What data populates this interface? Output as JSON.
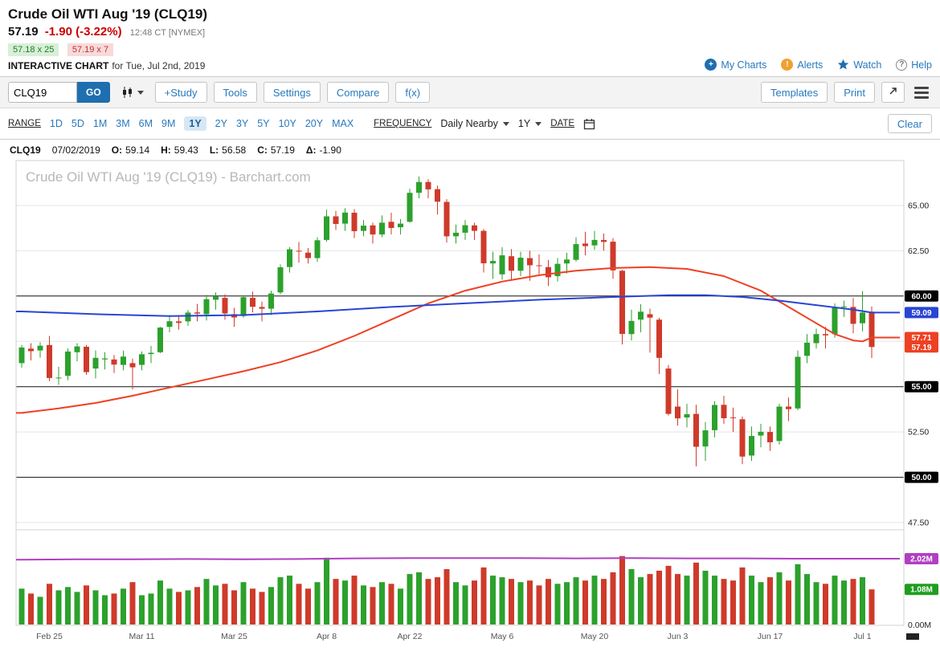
{
  "header": {
    "title": "Crude Oil WTI Aug '19 (CLQ19)",
    "last_price": "57.19",
    "change": "-1.90 (-3.22%)",
    "quote_time": "12:48 CT [NYMEX]",
    "bid": "57.18 x 25",
    "ask": "57.19 x 7",
    "interactive_label": "INTERACTIVE CHART",
    "interactive_suffix": "for Tue, Jul 2nd, 2019",
    "links": {
      "my_charts": "My Charts",
      "alerts": "Alerts",
      "watch": "Watch",
      "help": "Help"
    },
    "icon_glyphs": {
      "my_charts": "+",
      "alerts": "!",
      "help": "?"
    }
  },
  "toolbar": {
    "symbol_value": "CLQ19",
    "go_label": "GO",
    "buttons": [
      "+Study",
      "Tools",
      "Settings",
      "Compare",
      "f(x)"
    ],
    "right_buttons": [
      "Templates",
      "Print"
    ]
  },
  "range_bar": {
    "range_label": "RANGE",
    "ranges": [
      "1D",
      "5D",
      "1M",
      "3M",
      "6M",
      "9M",
      "1Y",
      "2Y",
      "3Y",
      "5Y",
      "10Y",
      "20Y",
      "MAX"
    ],
    "active_range": "1Y",
    "frequency_label": "FREQUENCY",
    "frequency_value": "Daily Nearby",
    "period_value": "1Y",
    "date_label": "DATE",
    "clear_label": "Clear"
  },
  "ohlc_bar": {
    "symbol": "CLQ19",
    "date": "07/02/2019",
    "open_label": "O:",
    "open": "59.14",
    "high_label": "H:",
    "high": "59.43",
    "low_label": "L:",
    "low": "56.58",
    "close_label": "C:",
    "close": "57.19",
    "change_label": "Δ:",
    "change": "-1.90"
  },
  "chart_data": {
    "type": "candlestick",
    "watermark": "Crude Oil WTI Aug '19 (CLQ19) - Barchart.com",
    "colors": {
      "up": "#2ca12c",
      "down": "#cf3a2a",
      "ma_blue": "#2945d4",
      "ma_red": "#ee4023",
      "oi_purple": "#b03fc1",
      "badge_black": "#000000",
      "vol_badge_green": "#1f9d1f"
    },
    "price_axis": {
      "range": [
        47.2,
        67.6
      ],
      "gridlines": [
        65,
        62.5,
        57.5,
        52.5,
        47.5
      ],
      "black_lines": [
        60,
        55,
        50
      ],
      "labels": [
        {
          "v": 65,
          "t": "65.00"
        },
        {
          "v": 62.5,
          "t": "62.50"
        },
        {
          "v": 52.5,
          "t": "52.50"
        },
        {
          "v": 47.5,
          "t": "47.50"
        }
      ],
      "badges": [
        {
          "v": 60,
          "t": "60.00",
          "c": "#000000"
        },
        {
          "v": 59.09,
          "t": "59.09",
          "c": "#2945d4"
        },
        {
          "v": 57.71,
          "t": "57.71",
          "c": "#ee4023"
        },
        {
          "v": 57.19,
          "t": "57.19",
          "c": "#ee4023"
        },
        {
          "v": 55,
          "t": "55.00",
          "c": "#000000"
        },
        {
          "v": 50,
          "t": "50.00",
          "c": "#000000"
        }
      ]
    },
    "volume_axis": {
      "range": [
        0,
        2.4
      ],
      "labels": [
        {
          "v": 0,
          "t": "0.00M"
        }
      ],
      "badges": [
        {
          "v": 2.02,
          "t": "2.02M",
          "c": "#b03fc1"
        },
        {
          "v": 1.08,
          "t": "1.08M",
          "c": "#1f9d1f"
        }
      ]
    },
    "x_ticks": [
      {
        "i": 3,
        "label": "Feb 25"
      },
      {
        "i": 13,
        "label": "Mar 11"
      },
      {
        "i": 23,
        "label": "Mar 25"
      },
      {
        "i": 33,
        "label": "Apr 8"
      },
      {
        "i": 42,
        "label": "Apr 22"
      },
      {
        "i": 52,
        "label": "May 6"
      },
      {
        "i": 62,
        "label": "May 20"
      },
      {
        "i": 71,
        "label": "Jun 3"
      },
      {
        "i": 81,
        "label": "Jun 17"
      },
      {
        "i": 91,
        "label": "Jul 1"
      }
    ],
    "bars": [
      [
        56.3,
        57.3,
        56.05,
        57.16,
        1.1
      ],
      [
        57.1,
        57.4,
        56.45,
        56.96,
        0.95
      ],
      [
        57.0,
        57.45,
        56.6,
        57.26,
        0.85
      ],
      [
        57.3,
        57.8,
        55.3,
        55.48,
        1.25
      ],
      [
        55.5,
        56.1,
        55.1,
        55.5,
        1.05
      ],
      [
        55.6,
        57.1,
        55.35,
        56.94,
        1.15
      ],
      [
        56.9,
        57.4,
        56.4,
        57.22,
        1.0
      ],
      [
        57.2,
        57.3,
        55.65,
        55.8,
        1.2
      ],
      [
        56.0,
        57.0,
        55.45,
        56.59,
        1.05
      ],
      [
        56.5,
        56.9,
        55.95,
        56.56,
        0.9
      ],
      [
        56.5,
        56.75,
        55.75,
        56.22,
        0.95
      ],
      [
        56.2,
        57.0,
        55.9,
        56.66,
        1.1
      ],
      [
        56.3,
        56.55,
        54.85,
        56.07,
        1.3
      ],
      [
        56.2,
        56.95,
        55.9,
        56.79,
        0.9
      ],
      [
        56.8,
        57.25,
        56.3,
        56.87,
        0.95
      ],
      [
        56.9,
        58.3,
        56.85,
        58.26,
        1.35
      ],
      [
        58.3,
        58.95,
        58.0,
        58.61,
        1.1
      ],
      [
        58.6,
        58.95,
        58.15,
        58.52,
        1.0
      ],
      [
        58.6,
        59.23,
        58.35,
        59.09,
        1.05
      ],
      [
        59.1,
        59.57,
        58.6,
        59.03,
        1.15
      ],
      [
        59.0,
        60.07,
        58.65,
        59.83,
        1.4
      ],
      [
        59.8,
        60.2,
        59.25,
        59.98,
        1.2
      ],
      [
        59.9,
        60.1,
        58.7,
        59.04,
        1.25
      ],
      [
        59.0,
        59.35,
        58.3,
        58.82,
        1.05
      ],
      [
        58.9,
        60.05,
        58.8,
        59.94,
        1.3
      ],
      [
        59.9,
        60.25,
        59.1,
        59.41,
        1.1
      ],
      [
        59.4,
        59.7,
        58.6,
        59.3,
        1.0
      ],
      [
        59.3,
        60.3,
        58.95,
        60.14,
        1.15
      ],
      [
        60.2,
        61.75,
        60.1,
        61.59,
        1.45
      ],
      [
        61.6,
        62.7,
        61.3,
        62.58,
        1.5
      ],
      [
        62.5,
        62.99,
        61.85,
        62.46,
        1.25
      ],
      [
        62.4,
        62.65,
        61.8,
        62.1,
        1.1
      ],
      [
        62.1,
        63.25,
        61.9,
        63.08,
        1.3
      ],
      [
        63.1,
        64.77,
        63.0,
        64.4,
        2.05
      ],
      [
        64.4,
        64.7,
        63.65,
        63.98,
        1.4
      ],
      [
        64.0,
        64.85,
        63.6,
        64.61,
        1.35
      ],
      [
        64.6,
        64.8,
        63.2,
        63.58,
        1.5
      ],
      [
        63.6,
        64.2,
        63.3,
        63.89,
        1.2
      ],
      [
        63.9,
        64.05,
        62.9,
        63.4,
        1.15
      ],
      [
        63.4,
        64.45,
        63.25,
        64.05,
        1.3
      ],
      [
        64.1,
        64.6,
        63.4,
        63.76,
        1.25
      ],
      [
        63.8,
        64.25,
        63.4,
        64.0,
        1.1
      ],
      [
        64.1,
        65.92,
        64.05,
        65.7,
        1.55
      ],
      [
        65.7,
        66.6,
        65.4,
        66.3,
        1.6
      ],
      [
        66.3,
        66.45,
        65.4,
        65.89,
        1.4
      ],
      [
        65.9,
        66.1,
        64.5,
        65.21,
        1.45
      ],
      [
        65.2,
        65.35,
        62.95,
        63.3,
        1.7
      ],
      [
        63.3,
        63.95,
        62.9,
        63.5,
        1.3
      ],
      [
        63.5,
        64.2,
        63.1,
        63.91,
        1.2
      ],
      [
        63.9,
        64.05,
        63.1,
        63.6,
        1.35
      ],
      [
        63.6,
        63.7,
        61.3,
        61.81,
        1.75
      ],
      [
        61.8,
        62.45,
        60.95,
        61.94,
        1.5
      ],
      [
        61.2,
        62.7,
        60.9,
        62.25,
        1.45
      ],
      [
        62.2,
        62.6,
        60.9,
        61.4,
        1.4
      ],
      [
        61.4,
        62.45,
        61.1,
        62.12,
        1.3
      ],
      [
        62.1,
        62.5,
        60.85,
        61.7,
        1.35
      ],
      [
        61.7,
        62.3,
        61.2,
        61.66,
        1.2
      ],
      [
        61.6,
        62.0,
        60.55,
        61.04,
        1.4
      ],
      [
        61.1,
        62.1,
        60.8,
        61.78,
        1.25
      ],
      [
        61.8,
        62.4,
        61.25,
        62.02,
        1.3
      ],
      [
        62.0,
        63.25,
        61.9,
        62.87,
        1.45
      ],
      [
        62.9,
        63.55,
        62.25,
        62.76,
        1.35
      ],
      [
        62.8,
        63.6,
        62.55,
        63.1,
        1.5
      ],
      [
        63.1,
        63.45,
        62.5,
        62.99,
        1.4
      ],
      [
        63.0,
        63.2,
        60.95,
        61.42,
        1.6
      ],
      [
        61.4,
        61.45,
        57.33,
        57.91,
        2.1
      ],
      [
        57.9,
        59.25,
        57.55,
        58.63,
        1.7
      ],
      [
        58.7,
        59.55,
        58.0,
        59.14,
        1.45
      ],
      [
        59.0,
        59.3,
        56.88,
        58.81,
        1.55
      ],
      [
        58.7,
        58.8,
        55.7,
        56.59,
        1.65
      ],
      [
        56.0,
        56.2,
        53.41,
        53.5,
        1.8
      ],
      [
        53.9,
        54.85,
        52.85,
        53.25,
        1.55
      ],
      [
        53.3,
        54.05,
        52.75,
        53.48,
        1.5
      ],
      [
        53.5,
        54.0,
        50.6,
        51.68,
        1.9
      ],
      [
        51.7,
        53.05,
        50.9,
        52.59,
        1.65
      ],
      [
        52.6,
        54.2,
        52.2,
        53.99,
        1.5
      ],
      [
        54.0,
        54.5,
        52.95,
        53.26,
        1.4
      ],
      [
        53.3,
        53.85,
        52.5,
        53.27,
        1.35
      ],
      [
        53.2,
        53.35,
        50.72,
        51.14,
        1.75
      ],
      [
        51.2,
        52.8,
        50.9,
        52.28,
        1.5
      ],
      [
        52.3,
        52.95,
        51.65,
        52.51,
        1.3
      ],
      [
        52.5,
        52.8,
        51.45,
        51.93,
        1.45
      ],
      [
        52.0,
        54.05,
        51.8,
        53.9,
        1.6
      ],
      [
        53.9,
        54.4,
        53.1,
        53.76,
        1.35
      ],
      [
        53.8,
        57.0,
        53.7,
        56.65,
        1.85
      ],
      [
        56.7,
        57.9,
        56.3,
        57.43,
        1.55
      ],
      [
        57.4,
        58.2,
        57.1,
        57.9,
        1.3
      ],
      [
        57.9,
        58.3,
        57.1,
        57.83,
        1.25
      ],
      [
        57.9,
        59.6,
        57.7,
        59.38,
        1.5
      ],
      [
        59.4,
        59.75,
        58.85,
        59.43,
        1.35
      ],
      [
        59.4,
        59.9,
        57.95,
        58.47,
        1.4
      ],
      [
        58.5,
        60.28,
        58.05,
        59.09,
        1.45
      ],
      [
        59.14,
        59.43,
        56.58,
        57.19,
        1.08
      ]
    ],
    "ma_blue": [
      [
        0,
        59.15
      ],
      [
        8,
        59.0
      ],
      [
        16,
        58.9
      ],
      [
        24,
        58.95
      ],
      [
        32,
        59.15
      ],
      [
        40,
        59.4
      ],
      [
        48,
        59.6
      ],
      [
        56,
        59.8
      ],
      [
        64,
        59.95
      ],
      [
        70,
        60.05
      ],
      [
        74,
        60.05
      ],
      [
        78,
        59.95
      ],
      [
        82,
        59.75
      ],
      [
        86,
        59.5
      ],
      [
        90,
        59.25
      ],
      [
        92,
        59.09
      ]
    ],
    "ma_red": [
      [
        0,
        53.55
      ],
      [
        4,
        53.8
      ],
      [
        8,
        54.1
      ],
      [
        12,
        54.5
      ],
      [
        16,
        54.95
      ],
      [
        20,
        55.4
      ],
      [
        24,
        55.85
      ],
      [
        28,
        56.35
      ],
      [
        32,
        57.0
      ],
      [
        36,
        57.8
      ],
      [
        40,
        58.7
      ],
      [
        44,
        59.6
      ],
      [
        48,
        60.3
      ],
      [
        52,
        60.8
      ],
      [
        56,
        61.15
      ],
      [
        60,
        61.4
      ],
      [
        64,
        61.55
      ],
      [
        68,
        61.6
      ],
      [
        72,
        61.5
      ],
      [
        76,
        61.1
      ],
      [
        80,
        60.3
      ],
      [
        83,
        59.4
      ],
      [
        86,
        58.5
      ],
      [
        88,
        57.9
      ],
      [
        90,
        57.55
      ],
      [
        91,
        57.5
      ],
      [
        92,
        57.71
      ]
    ],
    "oi_line": [
      [
        0,
        1.99
      ],
      [
        6,
        2.0
      ],
      [
        12,
        2.0
      ],
      [
        18,
        2.01
      ],
      [
        24,
        2.0
      ],
      [
        30,
        2.01
      ],
      [
        36,
        2.03
      ],
      [
        42,
        2.04
      ],
      [
        48,
        2.04
      ],
      [
        54,
        2.04
      ],
      [
        60,
        2.03
      ],
      [
        66,
        2.04
      ],
      [
        72,
        2.03
      ],
      [
        78,
        2.03
      ],
      [
        84,
        2.02
      ],
      [
        90,
        2.02
      ],
      [
        92,
        2.02
      ]
    ]
  }
}
